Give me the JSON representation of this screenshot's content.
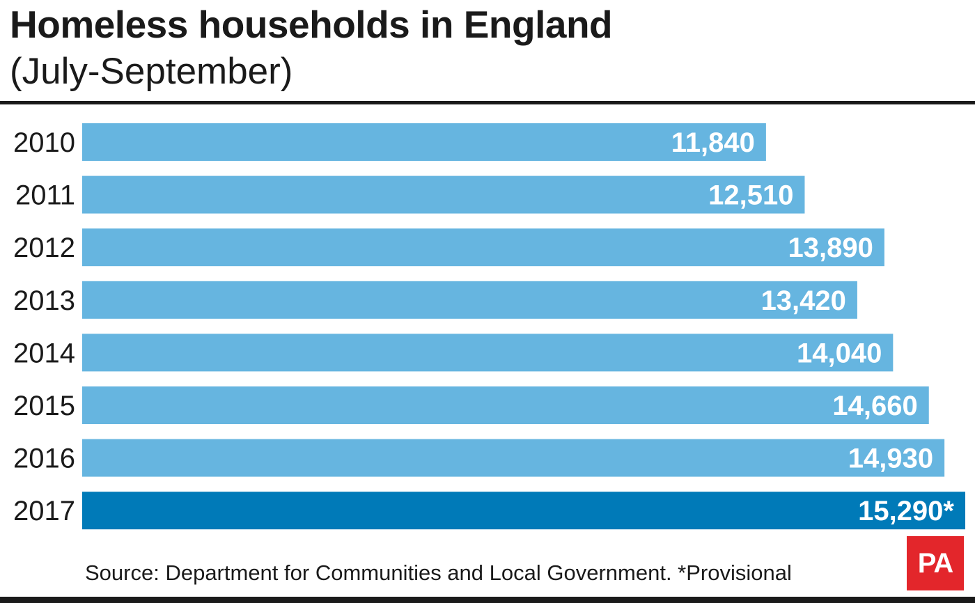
{
  "title": "Homeless households in England",
  "subtitle": "(July-September)",
  "source": "Source: Department for Communities and Local Government. *Provisional",
  "logo_text": "PA",
  "colors": {
    "bar": "#66b5e0",
    "bar_highlight": "#007ab8",
    "logo": "#e3262b",
    "text": "#1a1a1a"
  },
  "chart_data": {
    "type": "bar",
    "orientation": "horizontal",
    "title": "Homeless households in England",
    "subtitle": "(July-September)",
    "categories": [
      "2010",
      "2011",
      "2012",
      "2013",
      "2014",
      "2015",
      "2016",
      "2017"
    ],
    "values": [
      11840,
      12510,
      13890,
      13420,
      14040,
      14660,
      14930,
      15290
    ],
    "value_labels": [
      "11,840",
      "12,510",
      "13,890",
      "13,420",
      "14,040",
      "14,660",
      "14,930",
      "15,290*"
    ],
    "highlight_category": "2017",
    "xlim": [
      0,
      15290
    ],
    "grid": false,
    "legend": "none",
    "annotation": "*Provisional"
  }
}
